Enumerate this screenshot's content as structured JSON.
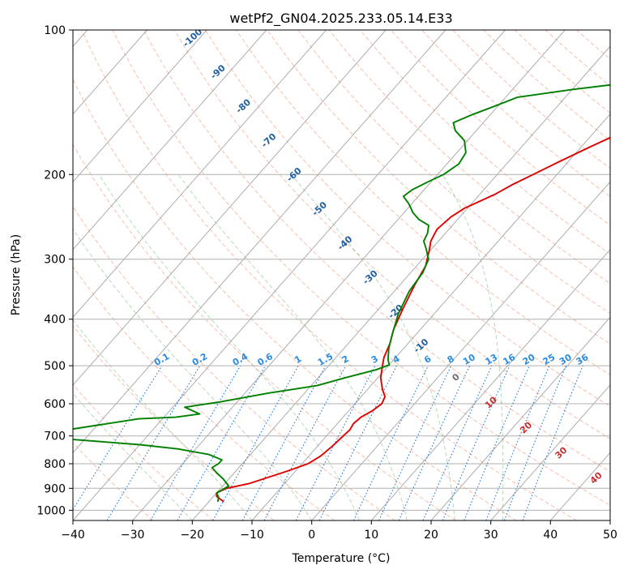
{
  "chart_data": {
    "type": "line",
    "title": "wetPf2_GN04.2025.233.05.14.E33",
    "xlabel": "Temperature (°C)",
    "ylabel": "Pressure (hPa)",
    "xlim": [
      -40,
      50
    ],
    "ylim": [
      1050,
      100
    ],
    "y_scale": "log",
    "grid": true,
    "x_ticks": [
      -40,
      -30,
      -20,
      -10,
      0,
      10,
      20,
      30,
      40,
      50
    ],
    "y_ticks": [
      100,
      200,
      300,
      400,
      500,
      600,
      700,
      800,
      900,
      1000
    ],
    "background_lines": {
      "isotherm_labels": [
        -100,
        -90,
        -80,
        -70,
        -60,
        -50,
        -40,
        -30,
        -20,
        -10,
        0,
        10,
        20,
        30,
        40
      ],
      "mixing_ratio_labels": [
        "0.1",
        "0.2",
        "0.4",
        "0.6",
        "1",
        "1.5",
        "2",
        "3",
        "4",
        "6",
        "8",
        "10",
        "13",
        "16",
        "20",
        "25",
        "30",
        "36"
      ]
    },
    "series": [
      {
        "color": "#e00000",
        "points": [
          [
            -17.5,
            960
          ],
          [
            -19.5,
            935
          ],
          [
            -20.0,
            920
          ],
          [
            -19.0,
            900
          ],
          [
            -16.0,
            880
          ],
          [
            -11.5,
            830
          ],
          [
            -9.0,
            800
          ],
          [
            -8.0,
            770
          ],
          [
            -7.5,
            735
          ],
          [
            -7.2,
            700
          ],
          [
            -7.0,
            680
          ],
          [
            -7.3,
            660
          ],
          [
            -7.0,
            640
          ],
          [
            -6.0,
            620
          ],
          [
            -5.5,
            600
          ],
          [
            -6.0,
            580
          ],
          [
            -7.5,
            560
          ],
          [
            -9.5,
            530
          ],
          [
            -11.0,
            500
          ],
          [
            -12.0,
            480
          ],
          [
            -13.0,
            450
          ],
          [
            -14.5,
            420
          ],
          [
            -16.0,
            380
          ],
          [
            -17.5,
            340
          ],
          [
            -18.5,
            310
          ],
          [
            -20.0,
            290
          ],
          [
            -21.3,
            275
          ],
          [
            -22.0,
            260
          ],
          [
            -21.5,
            245
          ],
          [
            -20.5,
            235
          ],
          [
            -19.5,
            230
          ],
          [
            -17.5,
            220
          ],
          [
            -16.0,
            210
          ],
          [
            -14.0,
            200
          ],
          [
            -11.5,
            188
          ],
          [
            -8.5,
            175
          ],
          [
            -5.0,
            162
          ],
          [
            -1.5,
            150
          ],
          [
            1.0,
            140
          ],
          [
            2.8,
            132
          ],
          [
            3.5,
            128
          ],
          [
            4.0,
            124
          ],
          [
            4.3,
            120
          ],
          [
            5.5,
            115
          ],
          [
            7.5,
            108
          ],
          [
            10.0,
            100
          ]
        ]
      },
      {
        "color": "#008000",
        "points": [
          [
            -18.5,
            960
          ],
          [
            -19.0,
            940
          ],
          [
            -20.0,
            920
          ],
          [
            -19.5,
            905
          ],
          [
            -19.0,
            890
          ],
          [
            -21.0,
            860
          ],
          [
            -23.0,
            835
          ],
          [
            -24.5,
            815
          ],
          [
            -24.0,
            800
          ],
          [
            -24.0,
            785
          ],
          [
            -27.0,
            765
          ],
          [
            -33.0,
            745
          ],
          [
            -40.0,
            730
          ],
          [
            -60.0,
            700
          ],
          [
            -44.0,
            645
          ],
          [
            -38.0,
            640
          ],
          [
            -34.5,
            630
          ],
          [
            -38.0,
            610
          ],
          [
            -33.0,
            595
          ],
          [
            -26.0,
            570
          ],
          [
            -19.0,
            550
          ],
          [
            -15.5,
            530
          ],
          [
            -11.5,
            510
          ],
          [
            -10.0,
            498
          ],
          [
            -11.0,
            485
          ],
          [
            -12.5,
            460
          ],
          [
            -14.0,
            430
          ],
          [
            -16.0,
            390
          ],
          [
            -17.5,
            350
          ],
          [
            -18.0,
            320
          ],
          [
            -19.0,
            300
          ],
          [
            -21.0,
            285
          ],
          [
            -22.5,
            275
          ],
          [
            -23.0,
            265
          ],
          [
            -24.0,
            255
          ],
          [
            -26.5,
            248
          ],
          [
            -28.5,
            240
          ],
          [
            -30.5,
            230
          ],
          [
            -32.5,
            222
          ],
          [
            -32.0,
            215
          ],
          [
            -30.5,
            207
          ],
          [
            -29.0,
            200
          ],
          [
            -28.0,
            190
          ],
          [
            -28.5,
            180
          ],
          [
            -30.5,
            170
          ],
          [
            -33.5,
            162
          ],
          [
            -35.0,
            156
          ],
          [
            -33.0,
            150
          ],
          [
            -30.5,
            144
          ],
          [
            -28.0,
            138
          ],
          [
            -20.0,
            133
          ],
          [
            -8.0,
            127
          ],
          [
            -4.0,
            122
          ],
          [
            -2.0,
            118
          ],
          [
            -1.0,
            113
          ],
          [
            0.0,
            105
          ],
          [
            0.5,
            100
          ]
        ]
      }
    ]
  }
}
